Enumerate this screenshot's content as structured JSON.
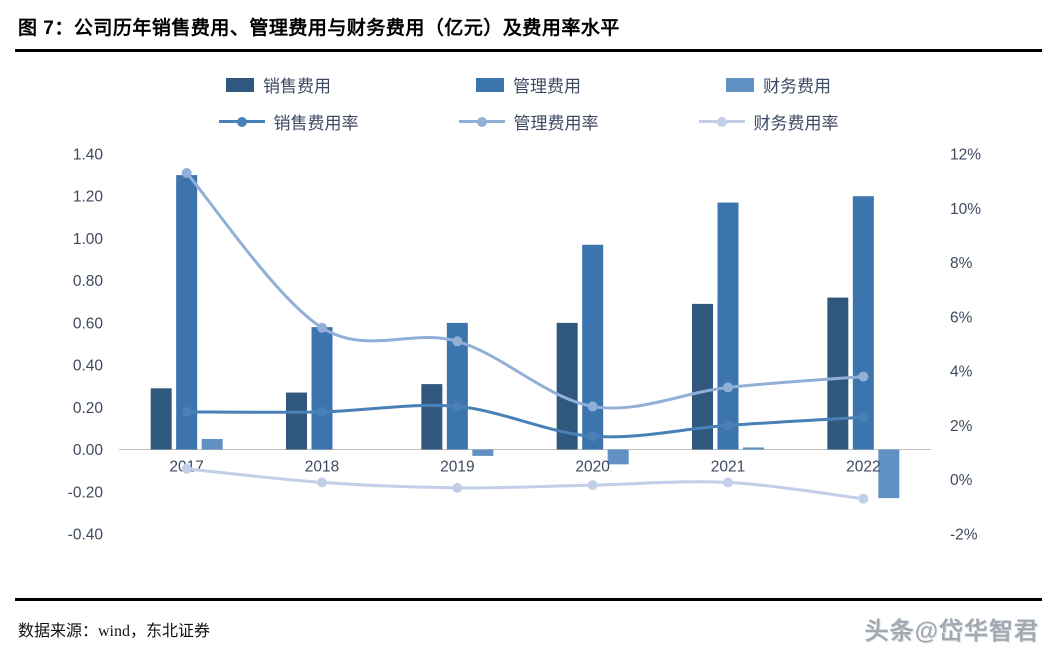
{
  "header": {
    "title": "图 7：公司历年销售费用、管理费用与财务费用（亿元）及费用率水平"
  },
  "footer": {
    "source": "数据来源：wind，东北证券",
    "watermark": "头条@岱华智君"
  },
  "chart_data": {
    "type": "bar+line",
    "title": "公司历年销售费用、管理费用与财务费用（亿元）及费用率水平",
    "categories": [
      "2017",
      "2018",
      "2019",
      "2020",
      "2021",
      "2022"
    ],
    "bar_series": [
      {
        "id": "sales-expense",
        "name": "销售费用",
        "color": "#30587f",
        "values": [
          0.29,
          0.27,
          0.31,
          0.6,
          0.69,
          0.72
        ]
      },
      {
        "id": "management-expense",
        "name": "管理费用",
        "color": "#3c74ad",
        "values": [
          1.3,
          0.58,
          0.6,
          0.97,
          1.17,
          1.2
        ]
      },
      {
        "id": "finance-expense",
        "name": "财务费用",
        "color": "#6090c4",
        "values": [
          0.05,
          0.0,
          -0.03,
          -0.07,
          0.01,
          -0.23
        ]
      }
    ],
    "line_series": [
      {
        "id": "sales-expense-rate",
        "name": "销售费用率",
        "color": "#4a80b8",
        "values": [
          2.5,
          2.5,
          2.7,
          1.6,
          2.0,
          2.3
        ]
      },
      {
        "id": "management-expense-rate",
        "name": "管理费用率",
        "color": "#92afd7",
        "values": [
          11.3,
          5.6,
          5.1,
          2.7,
          3.4,
          3.8
        ]
      },
      {
        "id": "finance-expense-rate",
        "name": "财务费用率",
        "color": "#c3cfe8",
        "values": [
          0.4,
          -0.1,
          -0.3,
          -0.2,
          -0.1,
          -0.7
        ]
      }
    ],
    "left_axis": {
      "min": -0.4,
      "max": 1.4,
      "step": 0.2,
      "tick_values": [
        1.4,
        1.2,
        1.0,
        0.8,
        0.6,
        0.4,
        0.2,
        0.0,
        -0.2,
        -0.4
      ],
      "tick_labels": [
        "1.40",
        "1.20",
        "1.00",
        "0.80",
        "0.60",
        "0.40",
        "0.20",
        "0.00",
        "-0.20",
        "-0.40"
      ]
    },
    "right_axis": {
      "min": -2,
      "max": 12,
      "step": 2,
      "tick_values": [
        12,
        10,
        8,
        6,
        4,
        2,
        0,
        -2
      ],
      "tick_labels": [
        "12%",
        "10%",
        "8%",
        "6%",
        "4%",
        "2%",
        "0%",
        "-2%"
      ]
    },
    "grid": false,
    "legend_position": "top"
  }
}
